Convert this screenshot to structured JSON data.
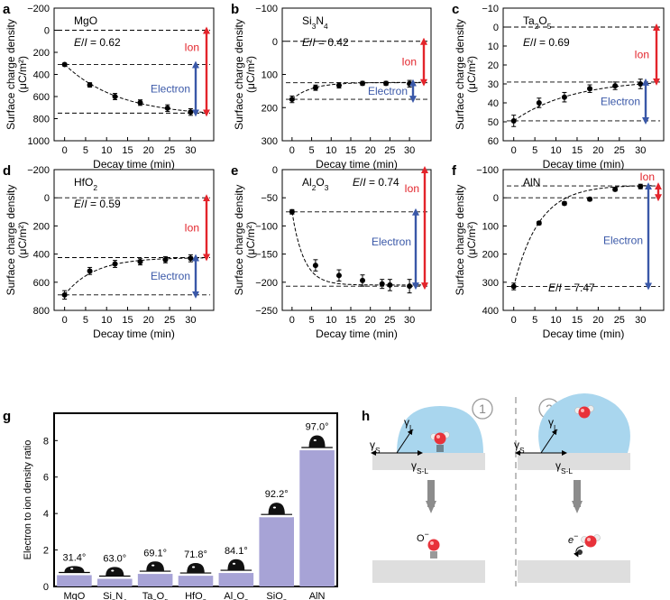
{
  "colors": {
    "ion": "#e3242b",
    "electron": "#3a58a8",
    "bar": "#a7a3d6",
    "droplet": "#a9d6ee",
    "molecule": "#e8323a"
  },
  "chart_data": [
    {
      "panel_label": "a",
      "type": "scatter",
      "material": "MgO",
      "ratio_text": "E/I = 0.62",
      "ratio_e": "E",
      "ratio_i": "I",
      "ratio_value": "0.62",
      "x": [
        0,
        6,
        12,
        18,
        24.5,
        30
      ],
      "y": [
        310,
        495,
        600,
        655,
        705,
        740
      ],
      "err": [
        12,
        20,
        28,
        25,
        30,
        30
      ],
      "xticks": [
        0,
        5,
        10,
        15,
        20,
        25,
        30
      ],
      "yticks": [
        -200,
        0,
        200,
        400,
        600,
        800,
        1000
      ],
      "ylim": [
        -200,
        1000
      ],
      "y_inverted": true,
      "fit": {
        "y0": 310,
        "yinf": 780,
        "tau": 13
      },
      "ref_lines": [
        0,
        310,
        750
      ],
      "arrows": [
        {
          "label": "Ion",
          "from": 0,
          "to": 750
        },
        {
          "label": "Electron",
          "from": 310,
          "to": 750
        }
      ],
      "xlabel": "Decay time (min)",
      "ylabel": "Surface charge density",
      "yunit": "(μC/m²)"
    },
    {
      "panel_label": "b",
      "type": "scatter",
      "material": "Si3N4",
      "ratio_text": "E/I = 0.42",
      "ratio_e": "E",
      "ratio_i": "I",
      "ratio_value": "0.42",
      "x": [
        0,
        6,
        12,
        18,
        24,
        30
      ],
      "y": [
        175,
        140,
        133,
        127,
        127,
        128
      ],
      "err": [
        10,
        8,
        8,
        6,
        6,
        10
      ],
      "xticks": [
        0,
        5,
        10,
        15,
        20,
        25,
        30
      ],
      "yticks": [
        -100,
        0,
        100,
        200,
        300
      ],
      "ylim": [
        -100,
        300
      ],
      "y_inverted": true,
      "fit": {
        "y0": 175,
        "yinf": 124,
        "tau": 5
      },
      "ref_lines": [
        0,
        125,
        175
      ],
      "arrows": [
        {
          "label": "Ion",
          "from": 0,
          "to": 125
        },
        {
          "label": "Electron",
          "from": 125,
          "to": 175
        }
      ],
      "xlabel": "Decay time (min)",
      "ylabel": "Surface charge density",
      "yunit": "(μC/m²)"
    },
    {
      "panel_label": "c",
      "type": "scatter",
      "material": "Ta2O5",
      "ratio_text": "E/I = 0.69",
      "ratio_e": "E",
      "ratio_i": "I",
      "ratio_value": "0.69",
      "x": [
        0,
        6,
        12,
        18,
        24,
        30
      ],
      "y": [
        49.5,
        40,
        37,
        32.5,
        31,
        30
      ],
      "err": [
        3,
        2.5,
        2.5,
        2,
        2,
        2.5
      ],
      "xticks": [
        0,
        5,
        10,
        15,
        20,
        25,
        30
      ],
      "yticks": [
        -10,
        0,
        10,
        20,
        30,
        40,
        50,
        60
      ],
      "ylim": [
        -10,
        60
      ],
      "y_inverted": true,
      "fit": {
        "y0": 49.5,
        "yinf": 27.5,
        "tau": 14
      },
      "ref_lines": [
        0,
        29,
        49.5
      ],
      "arrows": [
        {
          "label": "Ion",
          "from": 0,
          "to": 29
        },
        {
          "label": "Electron",
          "from": 29,
          "to": 49.5
        }
      ],
      "xlabel": "Decay time (min)",
      "ylabel": "Surface charge density",
      "yunit": "(μC/m²)"
    },
    {
      "panel_label": "d",
      "type": "scatter",
      "material": "HfO2",
      "ratio_text": "E/I = 0.59",
      "ratio_e": "E",
      "ratio_i": "I",
      "ratio_value": "0.59",
      "x": [
        0,
        6,
        12,
        18,
        24,
        30
      ],
      "y": [
        690,
        520,
        470,
        455,
        440,
        430
      ],
      "err": [
        30,
        25,
        25,
        22,
        22,
        25
      ],
      "xticks": [
        0,
        5,
        10,
        15,
        20,
        25,
        30
      ],
      "yticks": [
        -200,
        0,
        200,
        400,
        600,
        800
      ],
      "ylim": [
        -200,
        800
      ],
      "y_inverted": true,
      "fit": {
        "y0": 690,
        "yinf": 425,
        "tau": 7
      },
      "ref_lines": [
        0,
        425,
        690
      ],
      "arrows": [
        {
          "label": "Ion",
          "from": 0,
          "to": 425
        },
        {
          "label": "Electron",
          "from": 425,
          "to": 690
        }
      ],
      "xlabel": "Decay time (min)",
      "ylabel": "Surface charge density",
      "yunit": "(μC/m²)"
    },
    {
      "panel_label": "e",
      "type": "scatter",
      "material": "Al2O3",
      "ratio_text": "E/I = 0.74",
      "ratio_e": "E",
      "ratio_i": "I",
      "ratio_value": "0.74",
      "x": [
        0,
        6,
        12,
        18,
        23,
        25,
        30
      ],
      "y": [
        -75,
        -170,
        -188,
        -197,
        -203,
        -205,
        -207
      ],
      "err": [
        4,
        10,
        10,
        10,
        8,
        10,
        12
      ],
      "xticks": [
        0,
        5,
        10,
        15,
        20,
        25,
        30
      ],
      "yticks": [
        0,
        -50,
        -100,
        -150,
        -200,
        -250
      ],
      "ylim": [
        0,
        -250
      ],
      "y_inverted": false,
      "fit": {
        "y0": -75,
        "yinf": -205,
        "tau": 3
      },
      "ref_lines": [
        0,
        -75,
        -207
      ],
      "arrows": [
        {
          "label": "Ion",
          "from": 0,
          "to": -207
        },
        {
          "label": "Electron",
          "from": -75,
          "to": -207
        }
      ],
      "xlabel": "Decay time (min)",
      "ylabel": "Surface charge density",
      "yunit": "(μC/m²)"
    },
    {
      "panel_label": "f",
      "type": "scatter",
      "material": "AlN",
      "ratio_text": "E/I = 7.47",
      "ratio_e": "E",
      "ratio_i": "I",
      "ratio_value": "7.47",
      "x": [
        0,
        6,
        12,
        18,
        24,
        30
      ],
      "y": [
        315,
        90,
        20,
        5,
        -30,
        -40
      ],
      "err": [
        12,
        6,
        6,
        6,
        6,
        8
      ],
      "xticks": [
        0,
        5,
        10,
        15,
        20,
        25,
        30
      ],
      "yticks": [
        -100,
        0,
        100,
        200,
        300,
        400
      ],
      "ylim": [
        -100,
        400
      ],
      "y_inverted": true,
      "fit": {
        "y0": 315,
        "yinf": -45,
        "tau": 6
      },
      "ref_lines": [
        0,
        -42,
        315
      ],
      "arrows": [
        {
          "label": "Ion",
          "from": -42,
          "to": 0
        },
        {
          "label": "Electron",
          "from": -42,
          "to": 315
        }
      ],
      "xlabel": "Decay time (min)",
      "ylabel": "Surface charge density",
      "yunit": "(μC/m²)"
    },
    {
      "panel_label": "g",
      "type": "bar",
      "categories": [
        "MgO",
        "Si3N4",
        "Ta2O5",
        "HfO2",
        "Al2O3",
        "SiO2",
        "AlN"
      ],
      "values": [
        0.62,
        0.42,
        0.69,
        0.59,
        0.74,
        3.8,
        7.47
      ],
      "contact_angles": [
        "31.4°",
        "63.0°",
        "69.1°",
        "71.8°",
        "84.1°",
        "92.2°",
        "97.0°"
      ],
      "ylabel": "Electron to ion density ratio",
      "yticks": [
        0,
        2,
        4,
        6,
        8
      ],
      "ylim": [
        0,
        9.5
      ]
    }
  ],
  "schematic": {
    "panel_label": "h",
    "step_1": "1",
    "step_2": "2",
    "gamma": "γ",
    "sub_l": "L",
    "sub_s": "S",
    "sub_sl": "S-L",
    "ion_label": "O",
    "ion_sup": "−",
    "electron_label": "e",
    "electron_sup": "−"
  }
}
